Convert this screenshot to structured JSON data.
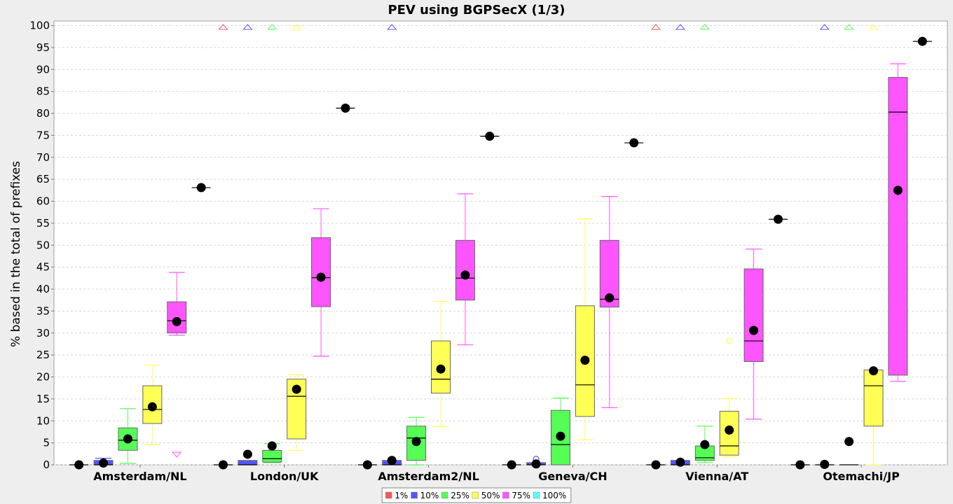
{
  "chart_data": {
    "type": "box",
    "title": "PEV using BGPSecX  (1/3)",
    "xlabel": "",
    "ylabel": "% based in the total of prefixes",
    "ylim": [
      0,
      100
    ],
    "yticks": [
      0,
      5,
      10,
      15,
      20,
      25,
      30,
      35,
      40,
      45,
      50,
      55,
      60,
      65,
      70,
      75,
      80,
      85,
      90,
      95,
      100
    ],
    "grid": true,
    "legend_position": "bottom-center",
    "categories": [
      "Amsterdam/NL",
      "London/UK",
      "Amsterdam2/NL",
      "Geneva/CH",
      "Vienna/AT",
      "Otemachi/JP"
    ],
    "series": [
      {
        "name": "1%",
        "color": "#ff5555",
        "data": [
          {
            "min": 0,
            "q1": 0,
            "median": 0,
            "q3": 0,
            "max": 0,
            "mean": 0,
            "outliers": [],
            "far_out_high": false
          },
          {
            "min": 0,
            "q1": 0,
            "median": 0,
            "q3": 0,
            "max": 0,
            "mean": 0,
            "outliers": [],
            "far_out_high": true
          },
          {
            "min": 0,
            "q1": 0,
            "median": 0,
            "q3": 0,
            "max": 0,
            "mean": 0,
            "outliers": [],
            "far_out_high": false
          },
          {
            "min": 0,
            "q1": 0,
            "median": 0,
            "q3": 0,
            "max": 0,
            "mean": 0,
            "outliers": [],
            "far_out_high": false
          },
          {
            "min": 0,
            "q1": 0,
            "median": 0,
            "q3": 0,
            "max": 0,
            "mean": 0,
            "outliers": [],
            "far_out_high": true
          },
          {
            "min": 0,
            "q1": 0,
            "median": 0,
            "q3": 0,
            "max": 0,
            "mean": 0,
            "outliers": [],
            "far_out_high": false
          }
        ]
      },
      {
        "name": "10%",
        "color": "#5555ff",
        "data": [
          {
            "min": 0,
            "q1": 0,
            "median": 0,
            "q3": 1,
            "max": 1.5,
            "mean": 0.4,
            "outliers": [],
            "far_out_high": false
          },
          {
            "min": 0,
            "q1": 0,
            "median": 0,
            "q3": 1,
            "max": 1,
            "mean": 2.4,
            "outliers": [],
            "far_out_high": true
          },
          {
            "min": 0,
            "q1": 0,
            "median": 0,
            "q3": 1,
            "max": 1,
            "mean": 1,
            "outliers": [],
            "far_out_high": true
          },
          {
            "min": 0,
            "q1": 0,
            "median": 0,
            "q3": 0.5,
            "max": 0.5,
            "mean": 0.2,
            "outliers": [
              1.3
            ],
            "far_out_high": false
          },
          {
            "min": 0,
            "q1": 0,
            "median": 0,
            "q3": 1,
            "max": 1,
            "mean": 0.6,
            "outliers": [],
            "far_out_high": true
          },
          {
            "min": 0,
            "q1": 0,
            "median": 0,
            "q3": 0,
            "max": 0,
            "mean": 0.1,
            "outliers": [],
            "far_out_high": true
          }
        ]
      },
      {
        "name": "25%",
        "color": "#55ff55",
        "data": [
          {
            "min": 0.3,
            "q1": 3.3,
            "median": 5.6,
            "q3": 8.4,
            "max": 12.8,
            "mean": 5.9,
            "outliers": [],
            "far_out_high": false
          },
          {
            "min": 0.5,
            "q1": 0.6,
            "median": 1.4,
            "q3": 3.3,
            "max": 4.8,
            "mean": 4.3,
            "outliers": [],
            "far_out_high": true
          },
          {
            "min": 0,
            "q1": 1,
            "median": 6.1,
            "q3": 8.8,
            "max": 10.8,
            "mean": 5.3,
            "outliers": [],
            "far_out_high": false
          },
          {
            "min": 0,
            "q1": 0,
            "median": 4.6,
            "q3": 12.4,
            "max": 15.2,
            "mean": 6.5,
            "outliers": [],
            "far_out_high": false
          },
          {
            "min": 0.5,
            "q1": 1,
            "median": 1.6,
            "q3": 4.3,
            "max": 8.8,
            "mean": 4.6,
            "outliers": [],
            "far_out_high": true
          },
          {
            "min": 0,
            "q1": 0,
            "median": 0,
            "q3": 0,
            "max": 0,
            "mean": 5.3,
            "outliers": [],
            "far_out_high": true
          }
        ]
      },
      {
        "name": "50%",
        "color": "#ffff55",
        "data": [
          {
            "min": 4.6,
            "q1": 9.4,
            "median": 12.6,
            "q3": 18,
            "max": 22.7,
            "mean": 13.2,
            "outliers": [],
            "far_out_high": false
          },
          {
            "min": 3.3,
            "q1": 5.9,
            "median": 15.6,
            "q3": 19.5,
            "max": 20.5,
            "mean": 17.2,
            "outliers": [],
            "far_out_high": true
          },
          {
            "min": 8.7,
            "q1": 16.3,
            "median": 19.5,
            "q3": 28.2,
            "max": 37.2,
            "mean": 21.8,
            "outliers": [],
            "far_out_high": false
          },
          {
            "min": 5.7,
            "q1": 11,
            "median": 18.2,
            "q3": 36.2,
            "max": 56,
            "mean": 23.8,
            "outliers": [],
            "far_out_high": false
          },
          {
            "min": 1.8,
            "q1": 2.2,
            "median": 4.3,
            "q3": 12.2,
            "max": 15.1,
            "mean": 7.9,
            "outliers": [
              28.2
            ],
            "far_out_high": false
          },
          {
            "min": 0,
            "q1": 8.8,
            "median": 18,
            "q3": 21.6,
            "max": 21.6,
            "mean": 21.4,
            "outliers": [],
            "far_out_high": true
          }
        ]
      },
      {
        "name": "75%",
        "color": "#ff55ff",
        "data": [
          {
            "min": 29.5,
            "q1": 30,
            "median": 32.8,
            "q3": 37.1,
            "max": 43.8,
            "mean": 32.6,
            "outliers": [],
            "far_out_low": true
          },
          {
            "min": 24.7,
            "q1": 36,
            "median": 42.6,
            "q3": 51.7,
            "max": 58.3,
            "mean": 42.7,
            "outliers": []
          },
          {
            "min": 27.3,
            "q1": 37.5,
            "median": 42.5,
            "q3": 51.1,
            "max": 61.7,
            "mean": 43.2,
            "outliers": []
          },
          {
            "min": 13,
            "q1": 35.9,
            "median": 37.7,
            "q3": 51.1,
            "max": 61.1,
            "mean": 38,
            "outliers": []
          },
          {
            "min": 10.4,
            "q1": 23.5,
            "median": 28.2,
            "q3": 44.6,
            "max": 49.1,
            "mean": 30.6,
            "outliers": []
          },
          {
            "min": 19,
            "q1": 20.4,
            "median": 80.3,
            "q3": 88.2,
            "max": 91.3,
            "mean": 62.5,
            "outliers": []
          }
        ]
      },
      {
        "name": "100%",
        "color": "#55ffff",
        "data": [
          {
            "min": 63.1,
            "q1": 63.1,
            "median": 63.1,
            "q3": 63.1,
            "max": 63.1,
            "mean": 63.1,
            "outliers": []
          },
          {
            "min": 81.2,
            "q1": 81.2,
            "median": 81.2,
            "q3": 81.2,
            "max": 81.2,
            "mean": 81.2,
            "outliers": []
          },
          {
            "min": 74.8,
            "q1": 74.8,
            "median": 74.8,
            "q3": 74.8,
            "max": 74.8,
            "mean": 74.8,
            "outliers": []
          },
          {
            "min": 73.3,
            "q1": 73.3,
            "median": 73.3,
            "q3": 73.3,
            "max": 73.3,
            "mean": 73.3,
            "outliers": []
          },
          {
            "min": 55.9,
            "q1": 55.9,
            "median": 55.9,
            "q3": 55.9,
            "max": 55.9,
            "mean": 55.9,
            "outliers": []
          },
          {
            "min": 96.4,
            "q1": 96.4,
            "median": 96.4,
            "q3": 96.4,
            "max": 96.4,
            "mean": 96.4,
            "outliers": []
          }
        ]
      }
    ]
  }
}
